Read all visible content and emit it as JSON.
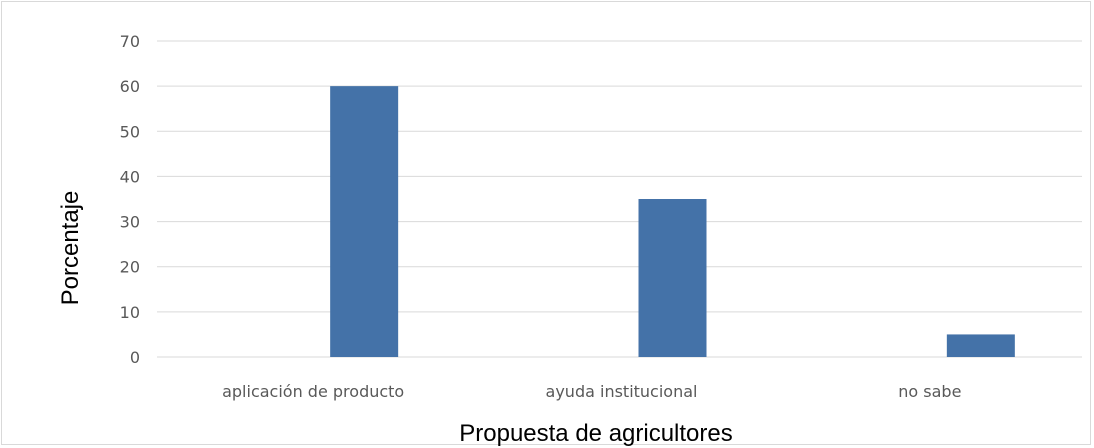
{
  "chart_data": {
    "type": "bar",
    "categories": [
      "aplicación de producto",
      "ayuda institucional",
      "no sabe"
    ],
    "values": [
      60,
      35,
      5
    ],
    "title": "",
    "xlabel": "Propuesta de agricultores",
    "ylabel": "Porcentaje",
    "ylim": [
      0,
      70
    ],
    "yticks": [
      0,
      10,
      20,
      30,
      40,
      50,
      60,
      70
    ],
    "grid": true,
    "legend": "none",
    "bar_color": "#4472a8",
    "grid_color": "#d9d9d9"
  }
}
